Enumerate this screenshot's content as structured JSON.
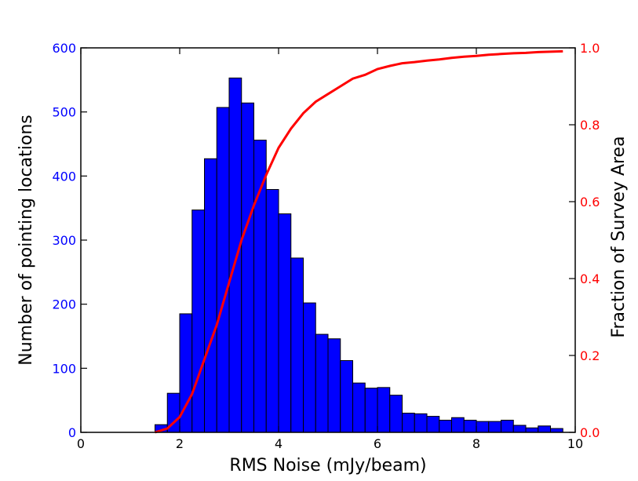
{
  "chart_data": {
    "type": "bar",
    "title": "",
    "xlabel": "RMS Noise (mJy/beam)",
    "ylabel": "Number of pointing locations",
    "y2label": "Fraction of Survey Area",
    "xlim": [
      0,
      10
    ],
    "ylim": [
      0,
      600
    ],
    "y2lim": [
      0,
      1.0
    ],
    "x_ticks": [
      "0",
      "2",
      "4",
      "6",
      "8",
      "10"
    ],
    "y_ticks": [
      "0",
      "100",
      "200",
      "300",
      "400",
      "500",
      "600"
    ],
    "y2_ticks": [
      "0.0",
      "0.2",
      "0.4",
      "0.6",
      "0.8",
      "1.0"
    ],
    "grid": false,
    "bin_width": 0.25,
    "histogram": {
      "color": "#0000ff",
      "bin_starts": [
        1.5,
        1.75,
        2.0,
        2.25,
        2.5,
        2.75,
        3.0,
        3.25,
        3.5,
        3.75,
        4.0,
        4.25,
        4.5,
        4.75,
        5.0,
        5.25,
        5.5,
        5.75,
        6.0,
        6.25,
        6.5,
        6.75,
        7.0,
        7.25,
        7.5,
        7.75,
        8.0,
        8.25,
        8.5,
        8.75,
        9.0,
        9.25,
        9.5
      ],
      "counts": [
        12,
        61,
        185,
        347,
        427,
        507,
        553,
        514,
        456,
        379,
        341,
        272,
        202,
        153,
        146,
        112,
        77,
        69,
        70,
        58,
        30,
        29,
        25,
        19,
        23,
        19,
        17,
        17,
        19,
        11,
        7,
        10,
        6
      ]
    },
    "cumulative": {
      "color": "#ff0000",
      "x": [
        1.5,
        1.75,
        2.0,
        2.25,
        2.5,
        2.75,
        3.0,
        3.25,
        3.5,
        3.75,
        4.0,
        4.25,
        4.5,
        4.75,
        5.0,
        5.25,
        5.5,
        5.75,
        6.0,
        6.25,
        6.5,
        6.75,
        7.0,
        7.25,
        7.5,
        7.75,
        8.0,
        8.25,
        8.5,
        8.75,
        9.0,
        9.25,
        9.5,
        9.75
      ],
      "y": [
        0.0,
        0.01,
        0.04,
        0.1,
        0.19,
        0.28,
        0.39,
        0.5,
        0.59,
        0.67,
        0.74,
        0.79,
        0.83,
        0.86,
        0.88,
        0.9,
        0.92,
        0.93,
        0.945,
        0.953,
        0.96,
        0.963,
        0.967,
        0.97,
        0.974,
        0.977,
        0.979,
        0.982,
        0.984,
        0.986,
        0.987,
        0.989,
        0.99,
        0.991
      ]
    }
  }
}
